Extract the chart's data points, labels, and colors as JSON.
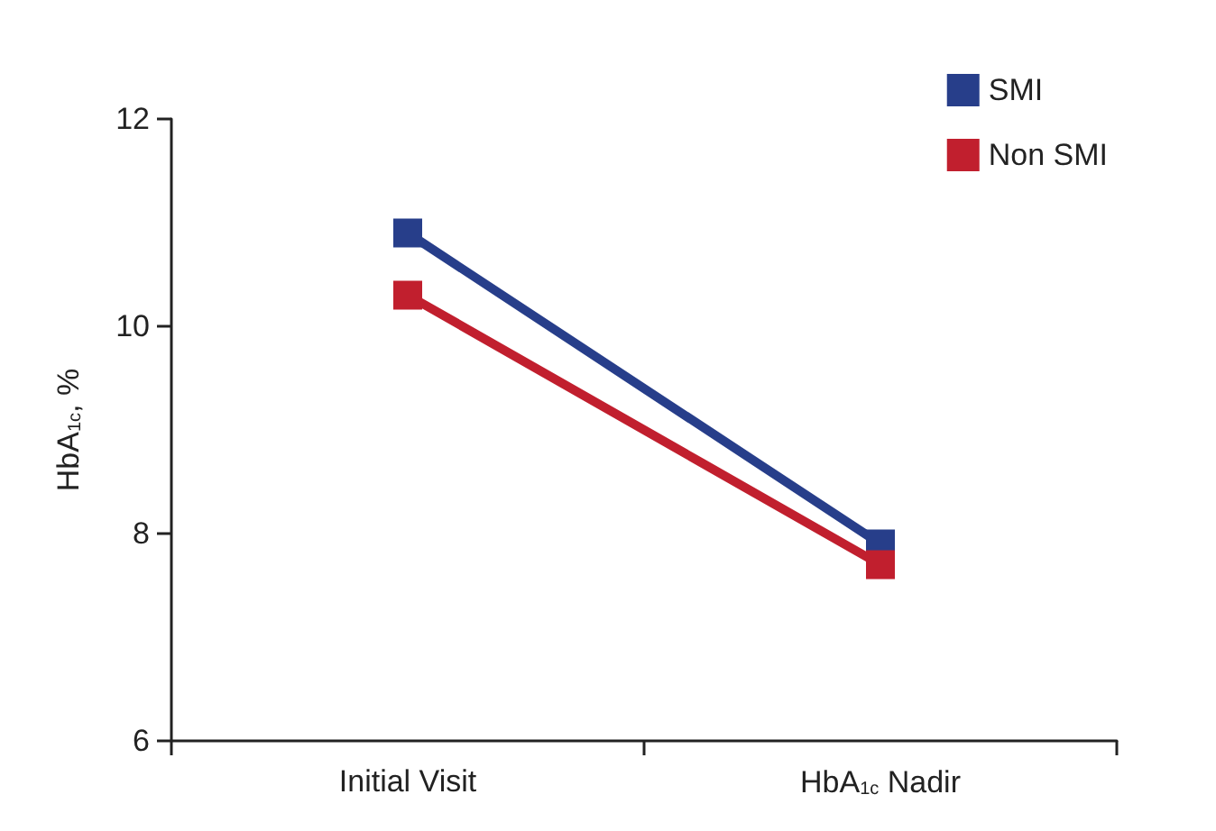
{
  "chart_data": {
    "type": "line",
    "ylabel": "HbA$_{1c}$, %",
    "categories": [
      "Initial Visit",
      "HbA$_{1c}$ Nadir"
    ],
    "series": [
      {
        "name": "SMI",
        "color": "#273e8a",
        "values": [
          10.9,
          7.9
        ]
      },
      {
        "name": "Non SMI",
        "color": "#c11f2e",
        "values": [
          10.3,
          7.7
        ]
      }
    ],
    "ylim": [
      6,
      12
    ],
    "yticks": [
      6,
      8,
      10,
      12
    ],
    "grid": false,
    "legend": "top right",
    "marker": "square",
    "line_style": "solid"
  }
}
